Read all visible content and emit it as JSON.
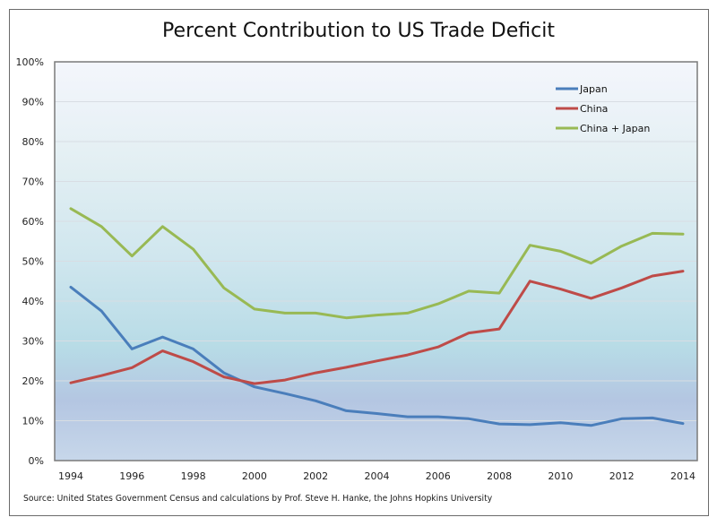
{
  "chart_data": {
    "type": "line",
    "title": "Percent Contribution to US Trade Deficit",
    "xlabel": "",
    "ylabel": "",
    "ylim": [
      0,
      100
    ],
    "xlim": [
      1994,
      2014
    ],
    "grid": true,
    "legend_position": "top-right",
    "y_ticks": [
      "0%",
      "10%",
      "20%",
      "30%",
      "40%",
      "50%",
      "60%",
      "70%",
      "80%",
      "90%",
      "100%"
    ],
    "y_tick_values": [
      0,
      10,
      20,
      30,
      40,
      50,
      60,
      70,
      80,
      90,
      100
    ],
    "x_ticks": [
      "1994",
      "1996",
      "1998",
      "2000",
      "2002",
      "2004",
      "2006",
      "2008",
      "2010",
      "2012",
      "2014"
    ],
    "x_tick_values": [
      1994,
      1996,
      1998,
      2000,
      2002,
      2004,
      2006,
      2008,
      2010,
      2012,
      2014
    ],
    "x": [
      1994,
      1995,
      1996,
      1997,
      1998,
      1999,
      2000,
      2001,
      2002,
      2003,
      2004,
      2005,
      2006,
      2007,
      2008,
      2009,
      2010,
      2011,
      2012,
      2013,
      2014
    ],
    "series": [
      {
        "name": "Japan",
        "color": "#4a7ebb",
        "values": [
          43.5,
          37.5,
          28,
          31,
          28,
          22,
          18.5,
          16.8,
          15,
          12.5,
          11.8,
          11,
          11,
          10.5,
          9.2,
          9,
          9.5,
          8.8,
          10.5,
          10.7,
          9.3
        ]
      },
      {
        "name": "China",
        "color": "#be4b48",
        "values": [
          19.5,
          21.3,
          23.3,
          27.5,
          24.8,
          21,
          19.3,
          20.2,
          22,
          23.4,
          25,
          26.5,
          28.5,
          32,
          33,
          45,
          43,
          40.7,
          43.3,
          46.3,
          47.5
        ]
      },
      {
        "name": "China + Japan",
        "color": "#98b954",
        "values": [
          63.2,
          58.7,
          51.3,
          58.7,
          53,
          43.3,
          38,
          37,
          37,
          35.8,
          36.5,
          37,
          39.3,
          42.5,
          42,
          54,
          52.5,
          49.5,
          53.8,
          57,
          56.8
        ]
      }
    ]
  },
  "source": "Source: United States Government Census and calculations by Prof. Steve H. Hanke, the Johns Hopkins University"
}
